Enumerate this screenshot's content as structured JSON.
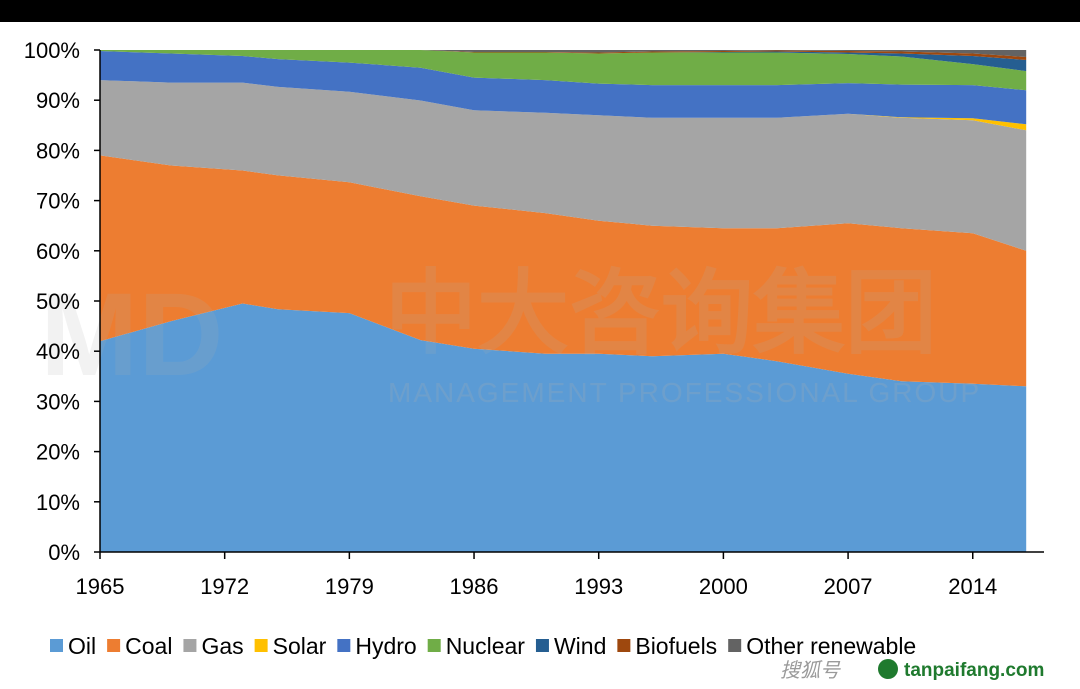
{
  "chart_data": {
    "type": "area",
    "stacked": true,
    "normalized_percent": true,
    "title": "",
    "xlabel": "",
    "ylabel": "",
    "x": [
      1965,
      1969,
      1973,
      1975,
      1979,
      1983,
      1986,
      1990,
      1993,
      1996,
      2000,
      2003,
      2007,
      2010,
      2014,
      2017
    ],
    "x_ticks": [
      "1965",
      "1972",
      "1979",
      "1986",
      "1993",
      "2000",
      "2007",
      "2014"
    ],
    "x_tick_values": [
      1965,
      1972,
      1979,
      1986,
      1993,
      2000,
      2007,
      2014
    ],
    "xlim": [
      1965,
      2018
    ],
    "ylim": [
      0,
      100
    ],
    "y_ticks": [
      "0%",
      "10%",
      "20%",
      "30%",
      "40%",
      "50%",
      "60%",
      "70%",
      "80%",
      "90%",
      "100%"
    ],
    "y_tick_values": [
      0,
      10,
      20,
      30,
      40,
      50,
      60,
      70,
      80,
      90,
      100
    ],
    "grid": false,
    "legend_position": "bottom",
    "series": [
      {
        "name": "Oil",
        "color": "#5b9bd5",
        "values": [
          42,
          46,
          49.5,
          48,
          47.5,
          42,
          40.5,
          39.5,
          39.5,
          39,
          39.5,
          38,
          35.5,
          34,
          33.5,
          33
        ]
      },
      {
        "name": "Coal",
        "color": "#ed7d31",
        "values": [
          37,
          31,
          26.5,
          26.5,
          26,
          28.5,
          28.5,
          28,
          26.5,
          26,
          25,
          26.5,
          30,
          30.5,
          30,
          27
        ]
      },
      {
        "name": "Gas",
        "color": "#a5a5a5",
        "values": [
          15,
          16.5,
          17.5,
          17.5,
          18,
          19,
          19,
          20,
          21,
          21.5,
          22,
          22,
          21.8,
          22,
          22.5,
          24
        ]
      },
      {
        "name": "Solar",
        "color": "#ffc000",
        "values": [
          0,
          0,
          0,
          0,
          0,
          0,
          0,
          0,
          0,
          0,
          0,
          0,
          0,
          0.1,
          0.4,
          1.2
        ]
      },
      {
        "name": "Hydro",
        "color": "#4472c4",
        "values": [
          5.8,
          5.8,
          5.3,
          5.5,
          5.8,
          6.5,
          6.5,
          6.5,
          6.3,
          6.5,
          6.5,
          6.5,
          6.1,
          6.5,
          6.6,
          6.8
        ]
      },
      {
        "name": "Nuclear",
        "color": "#70ad47",
        "values": [
          0.2,
          0.7,
          1.2,
          1.8,
          2.5,
          3.5,
          5.0,
          5.5,
          6.0,
          6.5,
          6.5,
          6.5,
          5.8,
          5.6,
          4.2,
          3.8
        ]
      },
      {
        "name": "Wind",
        "color": "#255e91",
        "values": [
          0,
          0,
          0,
          0,
          0,
          0,
          0,
          0,
          0,
          0,
          0.1,
          0.2,
          0.3,
          0.6,
          1.6,
          2.2
        ]
      },
      {
        "name": "Biofuels",
        "color": "#9e480e",
        "values": [
          0,
          0,
          0,
          0,
          0,
          0,
          0.1,
          0.1,
          0.2,
          0.2,
          0.2,
          0.2,
          0.3,
          0.4,
          0.5,
          0.6
        ]
      },
      {
        "name": "Other renewable",
        "color": "#636363",
        "values": [
          0,
          0,
          0,
          0,
          0,
          0,
          0.4,
          0.4,
          0.5,
          0.3,
          0.2,
          0.1,
          0.2,
          0.3,
          0.7,
          1.4
        ]
      }
    ]
  },
  "watermark": {
    "logo_text": "MD",
    "cn_text": "中大咨询集团",
    "en_text": "MANAGEMENT PROFESSIONAL GROUP"
  },
  "source_marks": {
    "left_text": "搜狐号",
    "right_text": "tanpaifang.com"
  }
}
